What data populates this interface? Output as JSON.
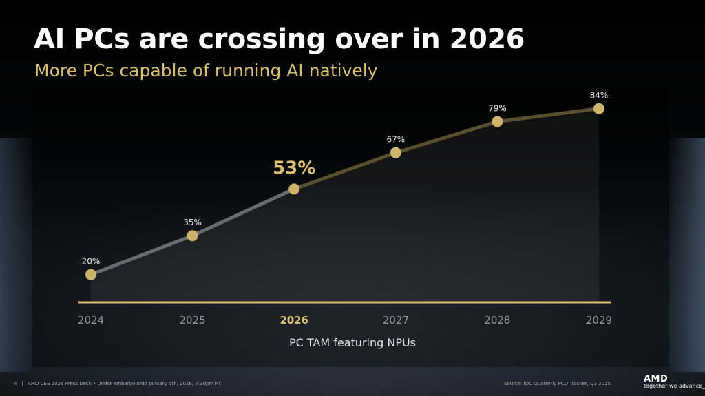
{
  "title": "AI PCs are crossing over in 2026",
  "subtitle": "More PCs capable of running AI natively",
  "chart_data": {
    "type": "line",
    "categories": [
      "2024",
      "2025",
      "2026",
      "2027",
      "2028",
      "2029"
    ],
    "values": [
      20,
      35,
      53,
      67,
      79,
      84
    ],
    "data_labels": [
      "20%",
      "35%",
      "53%",
      "67%",
      "79%",
      "84%"
    ],
    "highlight_category": "2026",
    "xlabel": "PC TAM featuring NPUs",
    "ylabel": "",
    "grid": false,
    "colors": {
      "point": "#cdb46c",
      "line_past": "#6b6b6b",
      "line_future": "#5a4f2e",
      "highlight": "#d9bf70",
      "axis": "#d9bf70"
    }
  },
  "footer": {
    "page": "4",
    "left": "AMD CES 2026 Press Deck • Under embargo until January 5th, 2026, 7:30pm PT",
    "source": "Source: IDC Quarterly PCD Tracker, Q3 2025."
  },
  "logo": {
    "brand": "AMD",
    "tagline": "together we advance_"
  }
}
